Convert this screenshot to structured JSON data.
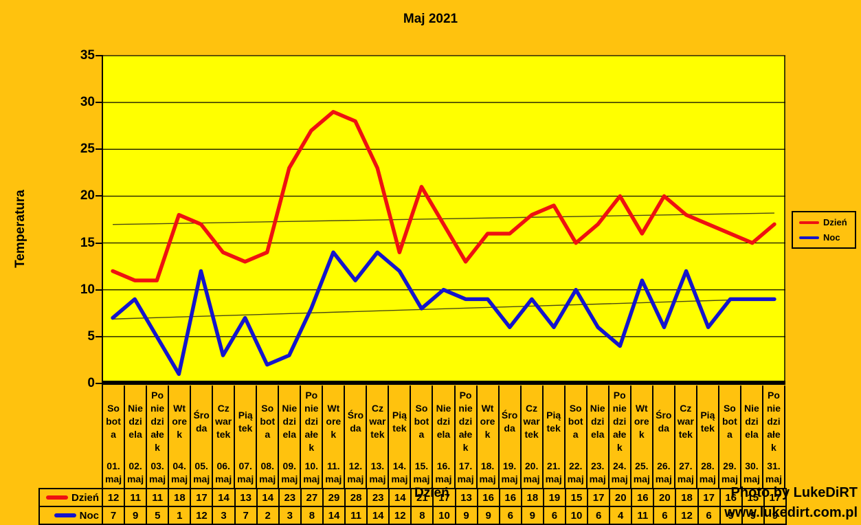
{
  "watermark": {
    "line1": "Photo by LukeDiRT",
    "line2": "www.lukedirt.com.pl"
  },
  "colors": {
    "background": "#ffc20e",
    "plot_background": "#ffff00",
    "grid": "#000000",
    "trend": "#4a4a14",
    "dzien": "#ee1111",
    "noc": "#1414cc"
  },
  "chart_data": {
    "type": "line",
    "title": "Maj 2021",
    "xlabel": "Dzień",
    "ylabel": "Temperatura",
    "ylim": [
      0,
      35
    ],
    "ytick_step": 5,
    "grid": true,
    "legend_position": "right",
    "trendlines": "linear per series",
    "weekday_wrap": {
      "Sobota": [
        "So",
        "bot",
        "a"
      ],
      "Niedziela": [
        "Nie",
        "dzi",
        "ela"
      ],
      "Poniedziałek": [
        "Po",
        "nie",
        "dzi",
        "ałe",
        "k"
      ],
      "Wtorek": [
        "Wt",
        "ore",
        "k"
      ],
      "Środa": [
        "Śro",
        "da"
      ],
      "Czwartek": [
        "Cz",
        "war",
        "tek"
      ],
      "Piątek": [
        "Pią",
        "tek"
      ]
    },
    "categories": [
      {
        "date": "01.",
        "month": "maj",
        "weekday": "Sobota"
      },
      {
        "date": "02.",
        "month": "maj",
        "weekday": "Niedziela"
      },
      {
        "date": "03.",
        "month": "maj",
        "weekday": "Poniedziałek"
      },
      {
        "date": "04.",
        "month": "maj",
        "weekday": "Wtorek"
      },
      {
        "date": "05.",
        "month": "maj",
        "weekday": "Środa"
      },
      {
        "date": "06.",
        "month": "maj",
        "weekday": "Czwartek"
      },
      {
        "date": "07.",
        "month": "maj",
        "weekday": "Piątek"
      },
      {
        "date": "08.",
        "month": "maj",
        "weekday": "Sobota"
      },
      {
        "date": "09.",
        "month": "maj",
        "weekday": "Niedziela"
      },
      {
        "date": "10.",
        "month": "maj",
        "weekday": "Poniedziałek"
      },
      {
        "date": "11.",
        "month": "maj",
        "weekday": "Wtorek"
      },
      {
        "date": "12.",
        "month": "maj",
        "weekday": "Środa"
      },
      {
        "date": "13.",
        "month": "maj",
        "weekday": "Czwartek"
      },
      {
        "date": "14.",
        "month": "maj",
        "weekday": "Piątek"
      },
      {
        "date": "15.",
        "month": "maj",
        "weekday": "Sobota"
      },
      {
        "date": "16.",
        "month": "maj",
        "weekday": "Niedziela"
      },
      {
        "date": "17.",
        "month": "maj",
        "weekday": "Poniedziałek"
      },
      {
        "date": "18.",
        "month": "maj",
        "weekday": "Wtorek"
      },
      {
        "date": "19.",
        "month": "maj",
        "weekday": "Środa"
      },
      {
        "date": "20.",
        "month": "maj",
        "weekday": "Czwartek"
      },
      {
        "date": "21.",
        "month": "maj",
        "weekday": "Piątek"
      },
      {
        "date": "22.",
        "month": "maj",
        "weekday": "Sobota"
      },
      {
        "date": "23.",
        "month": "maj",
        "weekday": "Niedziela"
      },
      {
        "date": "24.",
        "month": "maj",
        "weekday": "Poniedziałek"
      },
      {
        "date": "25.",
        "month": "maj",
        "weekday": "Wtorek"
      },
      {
        "date": "26.",
        "month": "maj",
        "weekday": "Środa"
      },
      {
        "date": "27.",
        "month": "maj",
        "weekday": "Czwartek"
      },
      {
        "date": "28.",
        "month": "maj",
        "weekday": "Piątek"
      },
      {
        "date": "29.",
        "month": "maj",
        "weekday": "Sobota"
      },
      {
        "date": "30.",
        "month": "maj",
        "weekday": "Niedziela"
      },
      {
        "date": "31.",
        "month": "maj",
        "weekday": "Poniedziałek"
      }
    ],
    "series": [
      {
        "name": "Dzień",
        "color": "#ee1111",
        "values": [
          12,
          11,
          11,
          18,
          17,
          14,
          13,
          14,
          23,
          27,
          29,
          28,
          23,
          14,
          21,
          17,
          13,
          16,
          16,
          18,
          19,
          15,
          17,
          20,
          16,
          20,
          18,
          17,
          16,
          15,
          17
        ]
      },
      {
        "name": "Noc",
        "color": "#1414cc",
        "values": [
          7,
          9,
          5,
          1,
          12,
          3,
          7,
          2,
          3,
          8,
          14,
          11,
          14,
          12,
          8,
          10,
          9,
          9,
          6,
          9,
          6,
          10,
          6,
          4,
          11,
          6,
          12,
          6,
          9,
          9,
          9
        ]
      }
    ]
  }
}
